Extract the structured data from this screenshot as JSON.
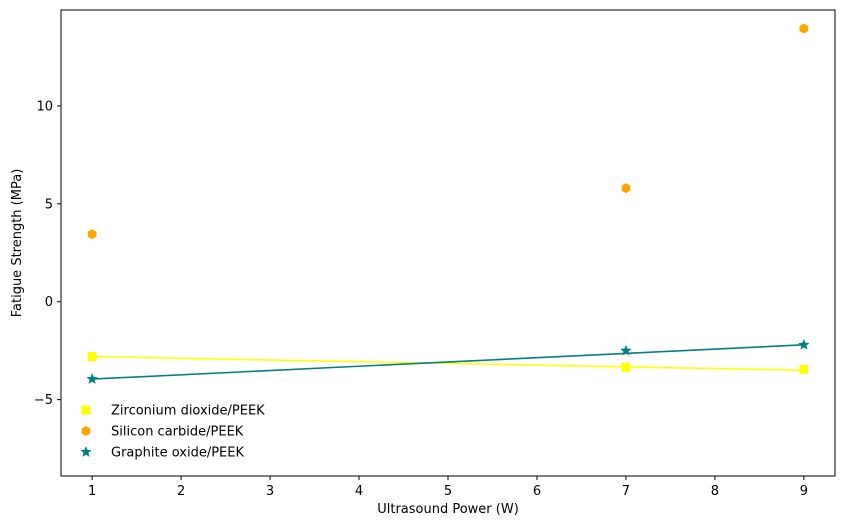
{
  "chart_data": {
    "type": "scatter",
    "title": "",
    "xlabel": "Ultrasound Power (W)",
    "ylabel": "Fatigue Strength (MPa)",
    "xlim": [
      0.65,
      9.35
    ],
    "ylim": [
      -8.9,
      14.9
    ],
    "xticks": [
      1,
      2,
      3,
      4,
      5,
      6,
      7,
      8,
      9
    ],
    "yticks": [
      -5,
      0,
      5,
      10
    ],
    "grid": false,
    "legend_position": "lower-left",
    "series": [
      {
        "name": "Zirconium dioxide/PEEK",
        "marker": "square",
        "color": "#ffff00",
        "x": [
          1,
          7,
          9
        ],
        "y": [
          -2.8,
          -3.35,
          -3.45
        ],
        "trend_line": {
          "x": [
            1,
            9
          ],
          "y": [
            -2.8,
            -3.5
          ]
        }
      },
      {
        "name": "Silicon carbide/PEEK",
        "marker": "hexagon",
        "color": "#ffa500",
        "x": [
          1,
          7,
          9
        ],
        "y": [
          3.45,
          5.8,
          13.95
        ],
        "trend_line": null
      },
      {
        "name": "Graphite oxide/PEEK",
        "marker": "star",
        "color": "#008080",
        "x": [
          1,
          7,
          9
        ],
        "y": [
          -3.95,
          -2.5,
          -2.2
        ],
        "trend_line": {
          "x": [
            1,
            9
          ],
          "y": [
            -3.95,
            -2.2
          ]
        }
      }
    ]
  }
}
